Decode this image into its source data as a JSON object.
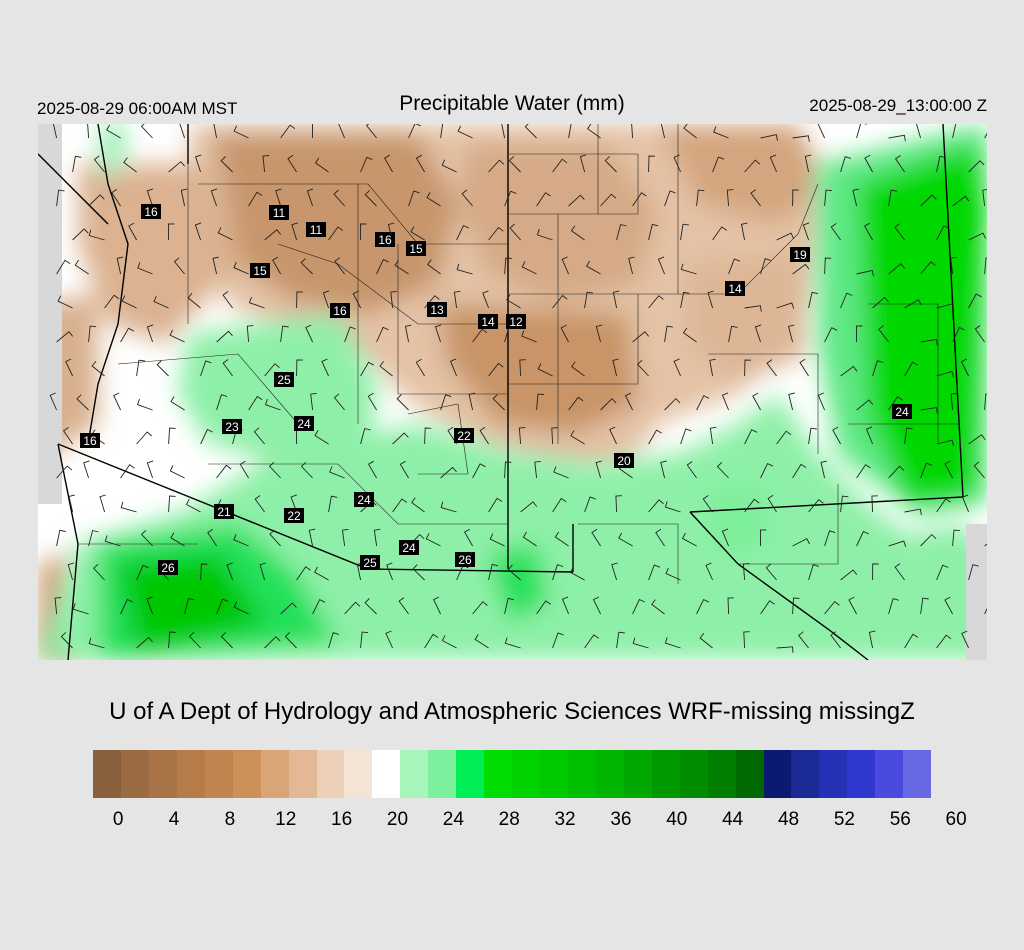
{
  "header": {
    "title": "Precipitable Water (mm)",
    "valid_local": "2025-08-29 06:00AM MST",
    "valid_utc": "2025-08-29_13:00:00 Z"
  },
  "credit": "U of A Dept of Hydrology and Atmospheric Sciences WRF-missing missingZ",
  "colorbar": {
    "colors": [
      "#8a5f3c",
      "#9a6a42",
      "#a87447",
      "#b57c4a",
      "#c2844e",
      "#cc9058",
      "#d8a478",
      "#e2b896",
      "#ecd0b8",
      "#f3e4d6",
      "#ffffff",
      "#a8f5bc",
      "#7cf09c",
      "#00ee55",
      "#00dd00",
      "#00d300",
      "#00c900",
      "#00bf00",
      "#00b500",
      "#00a800",
      "#009a00",
      "#008c00",
      "#007e00",
      "#006a00",
      "#0a1a70",
      "#1c2a98",
      "#2432b8",
      "#3038d0",
      "#4a4ade",
      "#6868e2"
    ],
    "tick_labels": [
      "0",
      "4",
      "8",
      "12",
      "16",
      "20",
      "24",
      "28",
      "32",
      "36",
      "40",
      "44",
      "48",
      "52",
      "56",
      "60"
    ]
  },
  "map": {
    "value_labels": [
      "16",
      "11",
      "11",
      "16",
      "15",
      "15",
      "16",
      "13",
      "14",
      "12",
      "19",
      "14",
      "25",
      "23",
      "24",
      "16",
      "22",
      "20",
      "24",
      "21",
      "22",
      "24",
      "24",
      "26",
      "25",
      "26"
    ]
  }
}
